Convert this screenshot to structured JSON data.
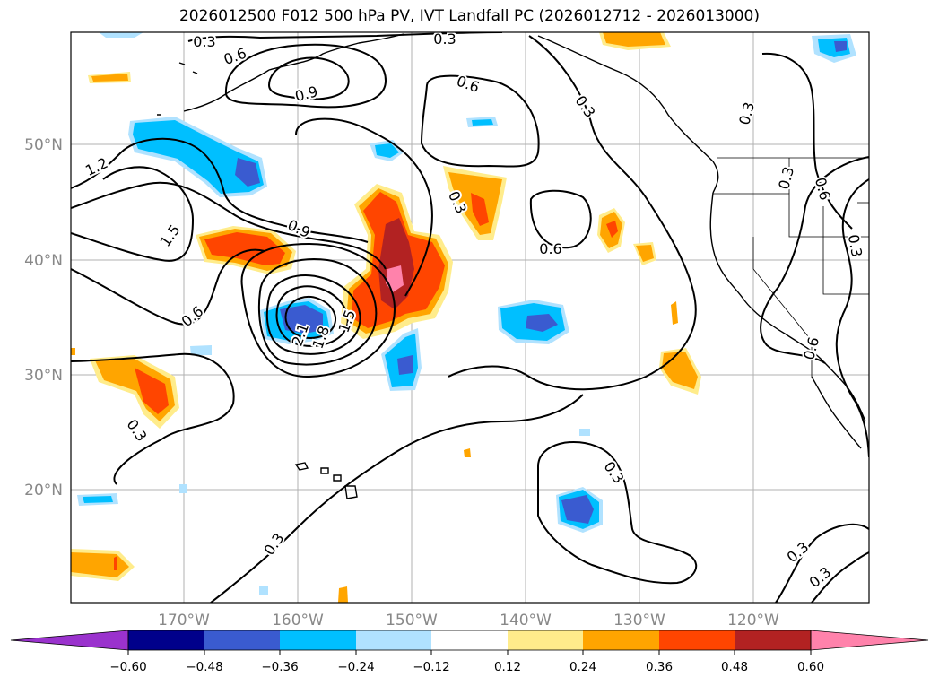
{
  "title": "2026012500 F012 500 hPa PV, IVT Landfall PC (2026012712 - 2026013000)",
  "colors": {
    "neg_060": "#9a32cd",
    "neg_048": "#00008b",
    "neg_036": "#3a5bd0",
    "neg_024": "#00bfff",
    "neg_012": "#b0e2ff",
    "zero": "#ffffff",
    "pos_012": "#ffec8b",
    "pos_024": "#ffa500",
    "pos_036": "#ff4500",
    "pos_048": "#b22222",
    "pos_060": "#ff82ab"
  },
  "map": {
    "lat_labels": [
      "50°N",
      "40°N",
      "30°N",
      "20°N"
    ],
    "lon_labels": [
      "170°W",
      "160°W",
      "150°W",
      "140°W",
      "130°W",
      "120°W"
    ]
  },
  "contour_labels": [
    "0.3",
    "0.3",
    "0.6",
    "0.9",
    "0.6",
    "0.3",
    "1.2",
    "1.5",
    "0.9",
    "0.6",
    "2.1",
    "1.8",
    "1.5",
    "0.3",
    "0.6",
    "0.3",
    "0.3",
    "0.3",
    "0.6",
    "0.3",
    "0.3",
    "0.3",
    "0.3",
    "0.6",
    "0.3"
  ],
  "colorbar": {
    "ticks": [
      "−0.60",
      "−0.48",
      "−0.36",
      "−0.24",
      "−0.12",
      "0.12",
      "0.24",
      "0.36",
      "0.48",
      "0.60"
    ]
  }
}
